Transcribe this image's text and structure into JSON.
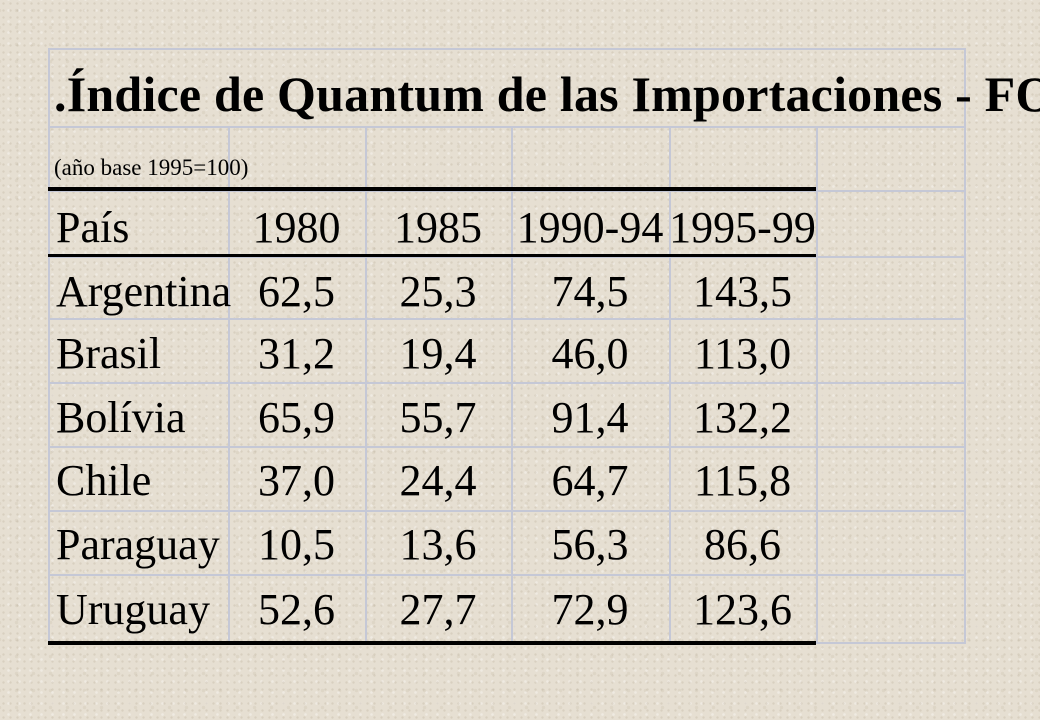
{
  "title": ".Índice de Quantum de las Importaciones - FOB",
  "subtitle": "(año base 1995=100)",
  "table": {
    "headers": [
      "País",
      "1980",
      "1985",
      "1990-94",
      "1995-99"
    ],
    "rows": [
      [
        "Argentina",
        "62,5",
        "25,3",
        "74,5",
        "143,5"
      ],
      [
        "Brasil",
        "31,2",
        "19,4",
        "46,0",
        "113,0"
      ],
      [
        "Bolívia",
        "65,9",
        "55,7",
        "91,4",
        "132,2"
      ],
      [
        "Chile",
        "37,0",
        "24,4",
        "64,7",
        "115,8"
      ],
      [
        "Paraguay",
        "10,5",
        "13,6",
        "56,3",
        "86,6"
      ],
      [
        "Uruguay",
        "52,6",
        "27,7",
        "72,9",
        "123,6"
      ]
    ]
  }
}
